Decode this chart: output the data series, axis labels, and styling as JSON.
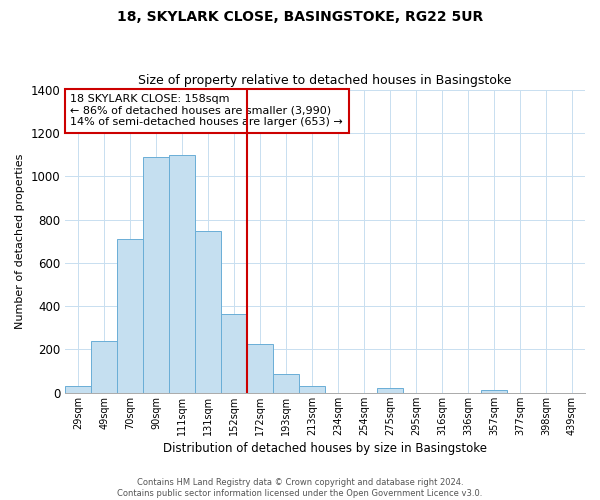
{
  "title": "18, SKYLARK CLOSE, BASINGSTOKE, RG22 5UR",
  "subtitle": "Size of property relative to detached houses in Basingstoke",
  "xlabel": "Distribution of detached houses by size in Basingstoke",
  "ylabel": "Number of detached properties",
  "bar_labels": [
    "29sqm",
    "49sqm",
    "70sqm",
    "90sqm",
    "111sqm",
    "131sqm",
    "152sqm",
    "172sqm",
    "193sqm",
    "213sqm",
    "234sqm",
    "254sqm",
    "275sqm",
    "295sqm",
    "316sqm",
    "336sqm",
    "357sqm",
    "377sqm",
    "398sqm",
    "439sqm"
  ],
  "bar_values": [
    30,
    240,
    710,
    1090,
    1100,
    745,
    365,
    225,
    85,
    30,
    0,
    0,
    20,
    0,
    0,
    0,
    15,
    0,
    0,
    0
  ],
  "bar_color": "#c5dff0",
  "bar_edge_color": "#6aaed6",
  "vline_color": "#cc0000",
  "ylim": [
    0,
    1400
  ],
  "yticks": [
    0,
    200,
    400,
    600,
    800,
    1000,
    1200,
    1400
  ],
  "annotation_title": "18 SKYLARK CLOSE: 158sqm",
  "annotation_line1": "← 86% of detached houses are smaller (3,990)",
  "annotation_line2": "14% of semi-detached houses are larger (653) →",
  "box_edge_color": "#cc0000",
  "footnote1": "Contains HM Land Registry data © Crown copyright and database right 2024.",
  "footnote2": "Contains public sector information licensed under the Open Government Licence v3.0."
}
